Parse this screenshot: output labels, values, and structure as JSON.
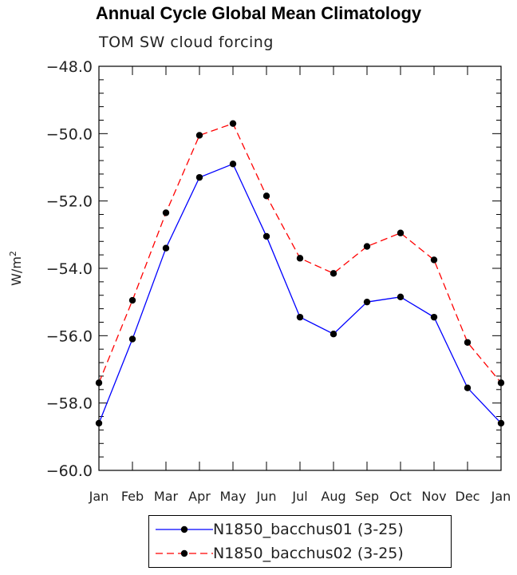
{
  "chart_data": {
    "type": "line",
    "title": "Annual Cycle Global Mean Climatology",
    "subtitle": "TOM SW cloud forcing",
    "ylabel": "W/m",
    "ylabel_sup": "2",
    "categories": [
      "Jan",
      "Feb",
      "Mar",
      "Apr",
      "May",
      "Jun",
      "Jul",
      "Aug",
      "Sep",
      "Oct",
      "Nov",
      "Dec",
      "Jan"
    ],
    "yticks": [
      "-48.0",
      "-50.0",
      "-52.0",
      "-54.0",
      "-56.0",
      "-58.0",
      "-60.0"
    ],
    "ylim": [
      -60.0,
      -48.0
    ],
    "series": [
      {
        "name": "N1850_bacchus01 (3-25)",
        "color": "#0000ff",
        "dash": "solid",
        "values": [
          -58.6,
          -56.1,
          -53.4,
          -51.3,
          -50.9,
          -53.05,
          -55.45,
          -55.95,
          -55.0,
          -54.85,
          -55.45,
          -57.55,
          -58.6
        ]
      },
      {
        "name": "N1850_bacchus02 (3-25)",
        "color": "#ff0000",
        "dash": "dashed",
        "values": [
          -57.4,
          -54.95,
          -52.35,
          -50.05,
          -49.7,
          -51.85,
          -53.7,
          -54.15,
          -53.35,
          -52.95,
          -53.75,
          -56.2,
          -57.4
        ]
      }
    ],
    "grid": false,
    "legend_position": "bottom-center"
  }
}
